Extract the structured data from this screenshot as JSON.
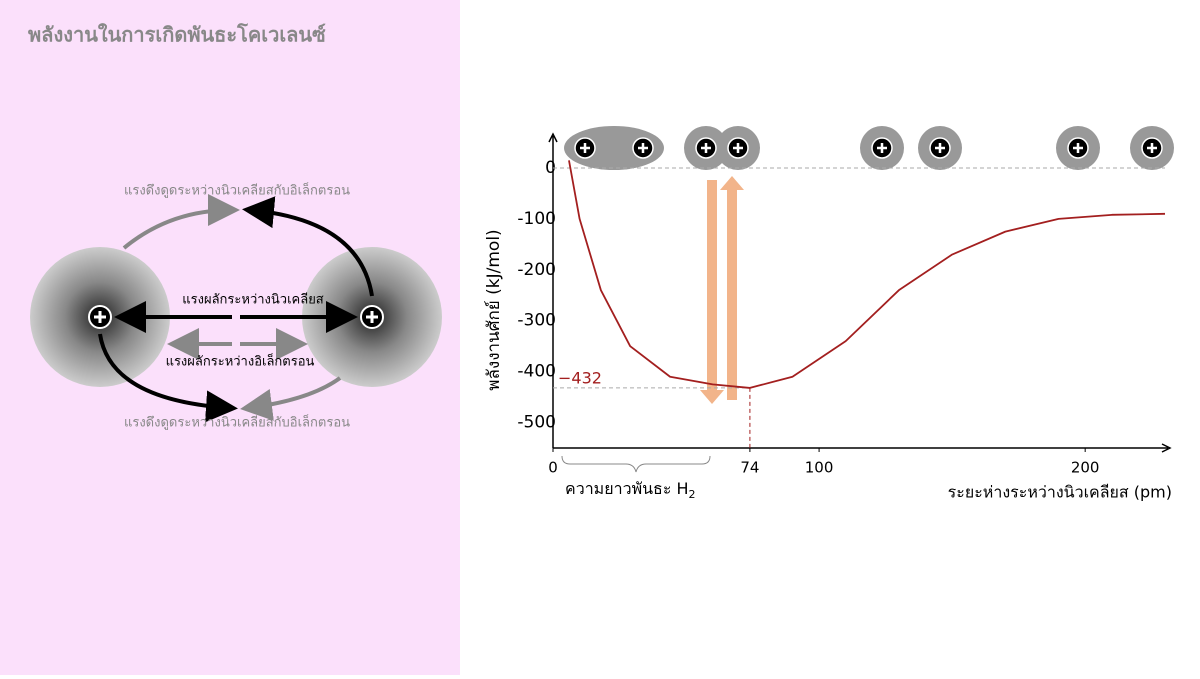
{
  "header": {
    "title": "พลังงานในการเกิดพันธะโคเวเลนซ์"
  },
  "diagram": {
    "labels": [
      "แรงดึงดูดระหว่างนิวเคลียสกับอิเล็กตรอน",
      "แรงผลักระหว่างนิวเคลียส",
      "แรงผลักระหว่างอิเล็กตรอน",
      "แรงดึงดูดระหว่างนิวเคลียสกับอิเล็กตรอน"
    ]
  },
  "chart_data": {
    "type": "line",
    "x_label": "ระยะห่างระหว่างนิวเคลียส (pm)",
    "y_label": "พลังงานศักย์ (kJ/mol)",
    "x": [
      6,
      10,
      18,
      29,
      44,
      60,
      74,
      90,
      110,
      130,
      150,
      170,
      190,
      210,
      230
    ],
    "values": [
      15,
      -100,
      -240,
      -350,
      -410,
      -425,
      -432,
      -410,
      -340,
      -240,
      -170,
      -125,
      -100,
      -92,
      -90
    ],
    "color": "#a31f1f",
    "xlim": [
      0,
      230
    ],
    "ylim": [
      -550,
      55
    ],
    "xticks": [
      0,
      74,
      100,
      200
    ],
    "yticks": [
      -500,
      -400,
      -300,
      -200,
      -100,
      0
    ],
    "annotation": {
      "x": 74,
      "y": -432,
      "label": "−432"
    },
    "bond_length_label": "ความยาวพันธะ H",
    "bond_length_sub": "2"
  }
}
